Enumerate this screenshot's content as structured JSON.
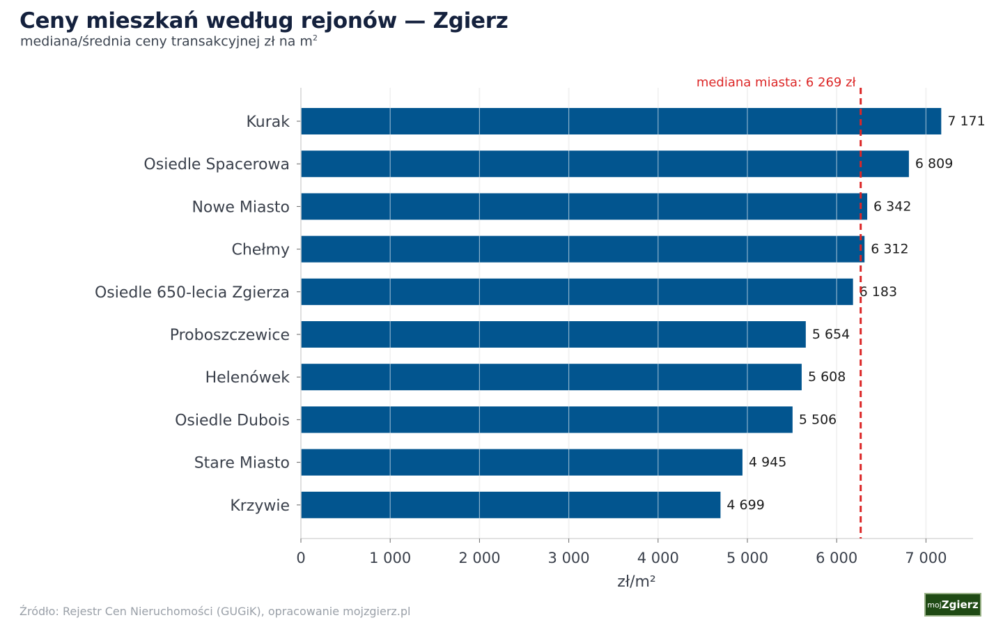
{
  "header": {
    "title": "Ceny mieszkań według rejonów — Zgierz",
    "subtitle": "mediana/średnia ceny transakcyjnej zł na m",
    "subtitle_sup": "2"
  },
  "footer": {
    "source": "Źródło: Rejestr Cen Nieruchomości (GUGiK), opracowanie mojzgierz.pl",
    "logo_prefix": "moj",
    "logo_name": "Zgierz"
  },
  "colors": {
    "bar": "#02558f",
    "median_line": "#dc2626",
    "grid": "#e2e2e2"
  },
  "chart_data": {
    "type": "bar",
    "orientation": "horizontal",
    "categories": [
      "Kurak",
      "Osiedle Spacerowa",
      "Nowe Miasto",
      "Chełmy",
      "Osiedle 650-lecia Zgierza",
      "Proboszczewice",
      "Helenówek",
      "Osiedle Dubois",
      "Stare Miasto",
      "Krzywie"
    ],
    "values": [
      7171,
      6809,
      6342,
      6312,
      6183,
      5654,
      5608,
      5506,
      4945,
      4699
    ],
    "value_labels": [
      "7 171",
      "6 809",
      "6 342",
      "6 312",
      "6 183",
      "5 654",
      "5 608",
      "5 506",
      "4 945",
      "4 699"
    ],
    "xlabel": "zł/m²",
    "xlim": [
      0,
      7550
    ],
    "xticks": [
      0,
      1000,
      2000,
      3000,
      4000,
      5000,
      6000,
      7000
    ],
    "xtick_labels": [
      "0",
      "1 000",
      "2 000",
      "3 000",
      "4 000",
      "5 000",
      "6 000",
      "7 000"
    ],
    "grid": "vertical",
    "reference_line": {
      "value": 6269,
      "label": "mediana miasta: 6 269 zł"
    }
  }
}
